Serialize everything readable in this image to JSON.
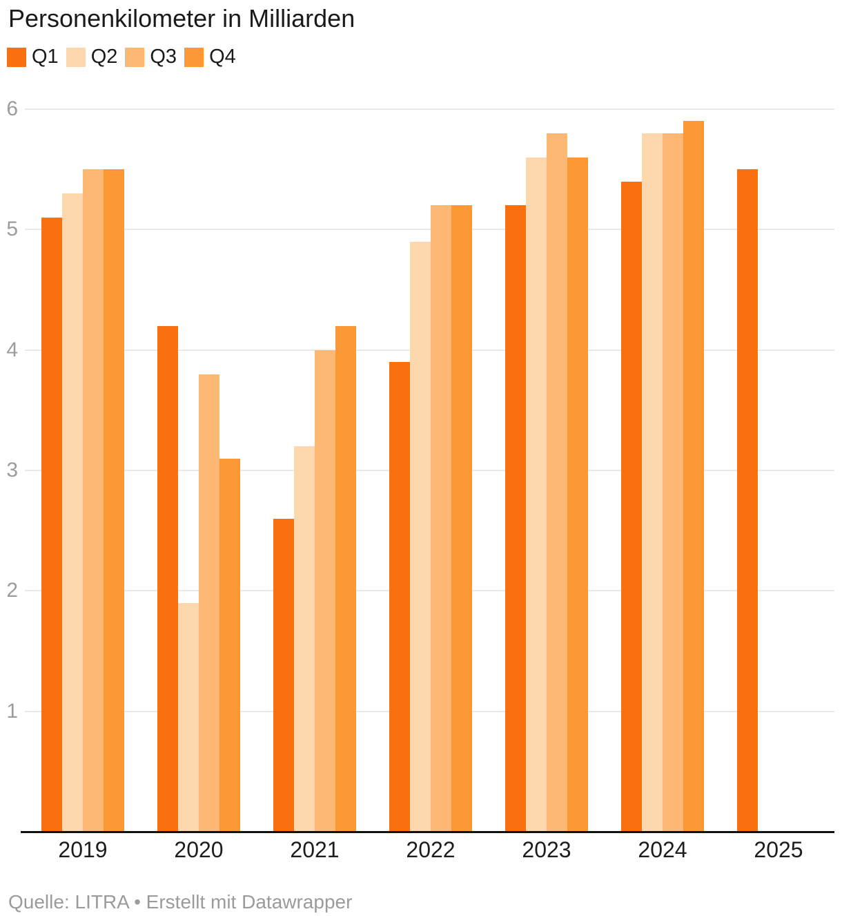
{
  "title": "Personenkilometer in Milliarden",
  "footer": {
    "full": "Quelle: LITRA • Erstellt mit Datawrapper",
    "source_label": "Quelle:",
    "source": "LITRA",
    "attribution": "Erstellt mit Datawrapper"
  },
  "colors": {
    "q1": "#fb700e",
    "q2": "#fdd8ad",
    "q3": "#fdb873",
    "q4": "#fd9836",
    "gridline": "#e9e9e9",
    "axis_baseline": "#111111",
    "ytick_text": "#9c9c9c",
    "xlabel_text": "#1d1d1d",
    "footer_text": "#9b9b9b",
    "title_text": "#1a1a1a"
  },
  "chart_data": {
    "type": "bar",
    "title": "Personenkilometer in Milliarden",
    "xlabel": "",
    "ylabel": "",
    "categories": [
      "2019",
      "2020",
      "2021",
      "2022",
      "2023",
      "2024",
      "2025"
    ],
    "series": [
      {
        "name": "Q1",
        "color": "#fb700e",
        "values": [
          5.1,
          4.2,
          2.6,
          3.9,
          5.2,
          5.4,
          5.5
        ]
      },
      {
        "name": "Q2",
        "color": "#fdd8ad",
        "values": [
          5.3,
          1.9,
          3.2,
          4.9,
          5.6,
          5.8,
          null
        ]
      },
      {
        "name": "Q3",
        "color": "#fdb873",
        "values": [
          5.5,
          3.8,
          4.0,
          5.2,
          5.8,
          5.8,
          null
        ]
      },
      {
        "name": "Q4",
        "color": "#fd9836",
        "values": [
          5.5,
          3.1,
          4.2,
          5.2,
          5.6,
          5.9,
          null
        ]
      }
    ],
    "ylim": [
      0,
      6
    ],
    "yticks": [
      1,
      2,
      3,
      4,
      5,
      6
    ],
    "grid": true,
    "legend_position": "top-left"
  }
}
